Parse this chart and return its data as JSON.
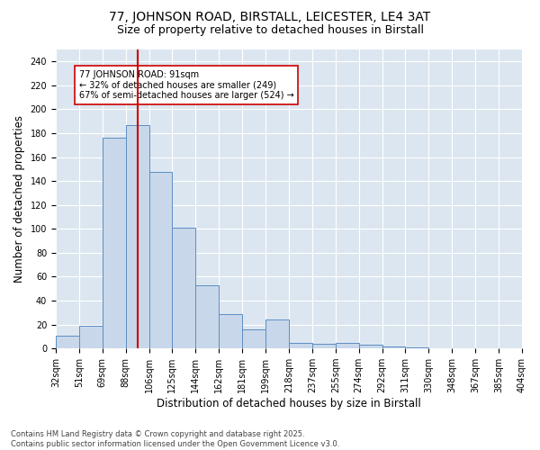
{
  "title_line1": "77, JOHNSON ROAD, BIRSTALL, LEICESTER, LE4 3AT",
  "title_line2": "Size of property relative to detached houses in Birstall",
  "xlabel": "Distribution of detached houses by size in Birstall",
  "ylabel": "Number of detached properties",
  "categories": [
    "32sqm",
    "51sqm",
    "69sqm",
    "88sqm",
    "106sqm",
    "125sqm",
    "144sqm",
    "162sqm",
    "181sqm",
    "199sqm",
    "218sqm",
    "237sqm",
    "255sqm",
    "274sqm",
    "292sqm",
    "311sqm",
    "330sqm",
    "348sqm",
    "367sqm",
    "385sqm",
    "404sqm"
  ],
  "bar_heights": [
    11,
    19,
    176,
    187,
    148,
    101,
    53,
    29,
    16,
    24,
    5,
    4,
    5,
    3,
    2,
    1,
    0,
    0,
    0,
    0
  ],
  "bar_color": "#c8d8ea",
  "bar_edge_color": "#5b8ec4",
  "vline_index": 3.5,
  "vline_color": "#cc0000",
  "annotation_text": "77 JOHNSON ROAD: 91sqm\n← 32% of detached houses are smaller (249)\n67% of semi-detached houses are larger (524) →",
  "annotation_box_color": "#ffffff",
  "annotation_box_edge": "#cc0000",
  "ylim": [
    0,
    250
  ],
  "yticks": [
    0,
    20,
    40,
    60,
    80,
    100,
    120,
    140,
    160,
    180,
    200,
    220,
    240
  ],
  "bg_color": "#dce6f1",
  "footer_text": "Contains HM Land Registry data © Crown copyright and database right 2025.\nContains public sector information licensed under the Open Government Licence v3.0.",
  "title_fontsize": 10,
  "subtitle_fontsize": 9,
  "axis_label_fontsize": 8.5,
  "tick_fontsize": 7,
  "annotation_fontsize": 7
}
